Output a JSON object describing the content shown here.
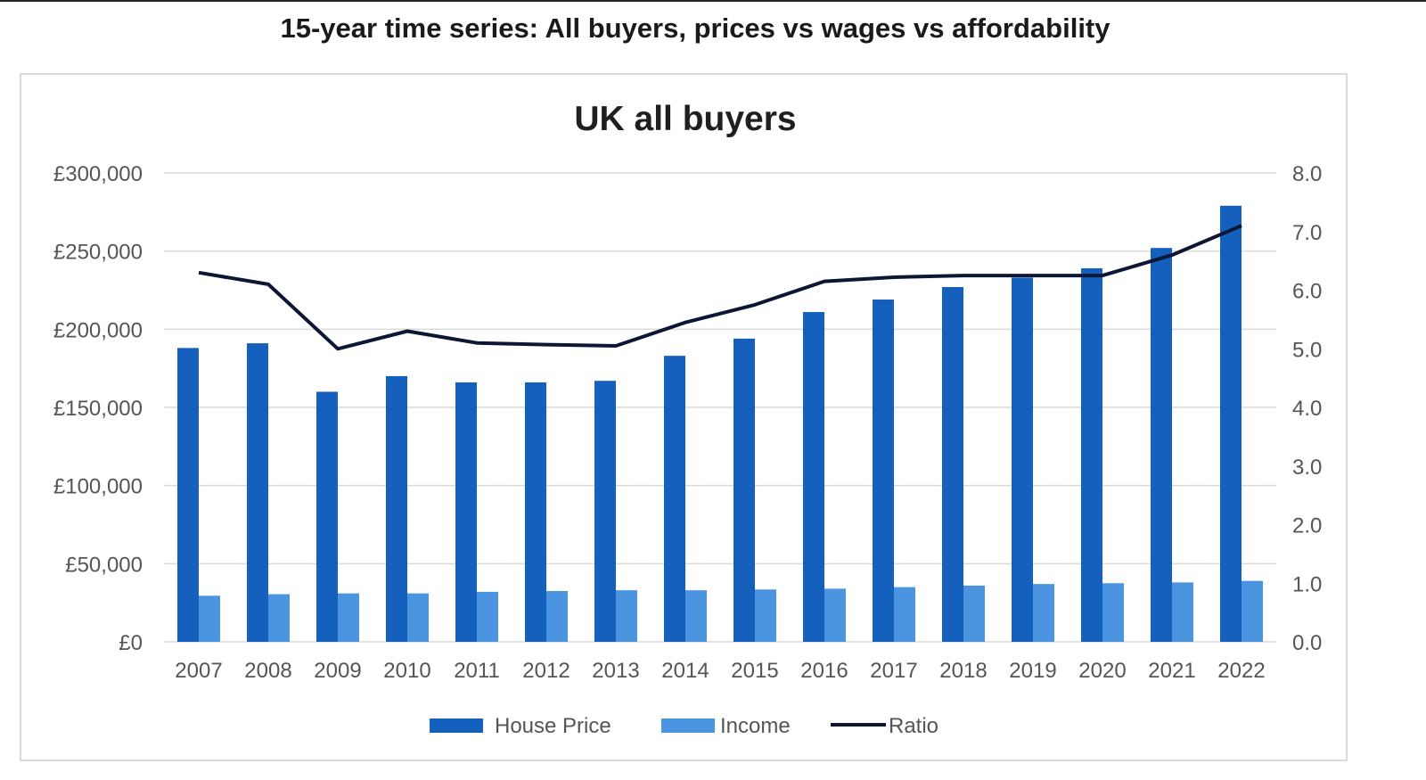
{
  "page": {
    "title": "15-year time series: All buyers, prices vs wages vs affordability"
  },
  "colors": {
    "house_price": "#1560bd",
    "income": "#4a94e0",
    "ratio": "#0d1635",
    "grid": "#d9d9d9"
  },
  "chart_data": {
    "type": "bar",
    "title": "UK all buyers",
    "categories": [
      "2007",
      "2008",
      "2009",
      "2010",
      "2011",
      "2012",
      "2013",
      "2014",
      "2015",
      "2016",
      "2017",
      "2018",
      "2019",
      "2020",
      "2021",
      "2022"
    ],
    "series": [
      {
        "name": "House Price",
        "kind": "bar",
        "axis": "left",
        "values": [
          188000,
          191000,
          160000,
          170000,
          166000,
          166000,
          167000,
          183000,
          194000,
          211000,
          219000,
          227000,
          233000,
          239000,
          252000,
          279000
        ]
      },
      {
        "name": "Income",
        "kind": "bar",
        "axis": "left",
        "values": [
          29500,
          30500,
          31000,
          31000,
          32000,
          32500,
          33000,
          33000,
          33500,
          34000,
          35000,
          36000,
          37000,
          37500,
          38000,
          39000
        ]
      },
      {
        "name": "Ratio",
        "kind": "line",
        "axis": "right",
        "values": [
          6.3,
          6.1,
          5.0,
          5.3,
          5.1,
          5.07,
          5.05,
          5.45,
          5.75,
          6.15,
          6.22,
          6.25,
          6.25,
          6.25,
          6.6,
          7.1
        ]
      }
    ],
    "y_left": {
      "min": 0,
      "max": 300000,
      "ticks": [
        "£0",
        "£50,000",
        "£100,000",
        "£150,000",
        "£200,000",
        "£250,000",
        "£300,000"
      ]
    },
    "y_right": {
      "min": 0,
      "max": 8,
      "ticks": [
        "0.0",
        "1.0",
        "2.0",
        "3.0",
        "4.0",
        "5.0",
        "6.0",
        "7.0",
        "8.0"
      ]
    },
    "grid": true,
    "legend": {
      "position": "bottom-center",
      "entries": [
        "House Price",
        "Income",
        "Ratio"
      ]
    }
  }
}
